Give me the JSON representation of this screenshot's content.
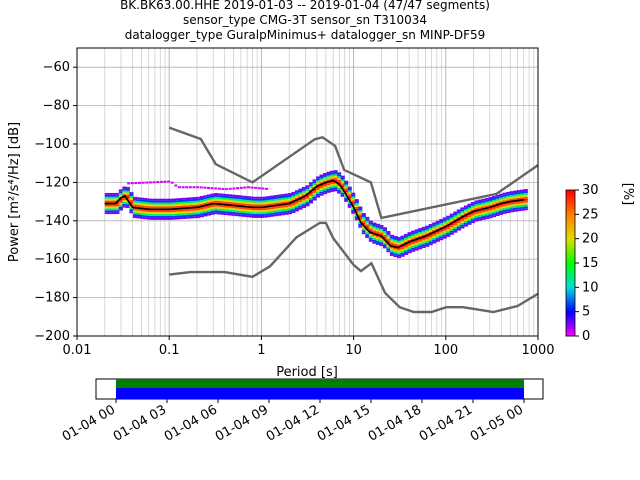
{
  "chart_data": {
    "type": "heatmap",
    "title_lines": [
      "BK.BK63.00.HHE   2019-01-03 -- 2019-01-04  (47/47 segments)",
      "sensor_type CMG-3T sensor_sn T310034",
      "datalogger_type GuralpMinimus+ datalogger_sn MINP-DF59"
    ],
    "xlabel": "Period [s]",
    "ylabel": "Power [m²/s⁴/Hz] [dB]",
    "xscale": "log",
    "xlim": [
      0.01,
      1000
    ],
    "ylim": [
      -200,
      -50
    ],
    "x_ticks": [
      {
        "value": 0.01,
        "label": "0.01"
      },
      {
        "value": 0.1,
        "label": "0.1"
      },
      {
        "value": 1,
        "label": "1"
      },
      {
        "value": 10,
        "label": "10"
      },
      {
        "value": 100,
        "label": "100"
      },
      {
        "value": 1000,
        "label": "1000"
      }
    ],
    "y_ticks": [
      {
        "value": -60,
        "label": "−60"
      },
      {
        "value": -80,
        "label": "−80"
      },
      {
        "value": -100,
        "label": "−100"
      },
      {
        "value": -120,
        "label": "−120"
      },
      {
        "value": -140,
        "label": "−140"
      },
      {
        "value": -160,
        "label": "−160"
      },
      {
        "value": -180,
        "label": "−180"
      },
      {
        "value": -200,
        "label": "−200"
      }
    ],
    "grid": true,
    "noise_model_high": [
      [
        0.1,
        -91.5
      ],
      [
        0.22,
        -97.4
      ],
      [
        0.32,
        -110.5
      ],
      [
        0.8,
        -120
      ],
      [
        3.8,
        -97.5
      ],
      [
        4.6,
        -96.5
      ],
      [
        6.3,
        -101
      ],
      [
        7.9,
        -113.5
      ],
      [
        15.4,
        -120
      ],
      [
        20,
        -138.5
      ],
      [
        354,
        -126
      ],
      [
        1000,
        -111
      ]
    ],
    "noise_model_low": [
      [
        0.1,
        -168
      ],
      [
        0.17,
        -166.7
      ],
      [
        0.4,
        -166.7
      ],
      [
        0.8,
        -169.2
      ],
      [
        1.24,
        -163.7
      ],
      [
        2.4,
        -148.6
      ],
      [
        4.3,
        -141.1
      ],
      [
        5,
        -141.1
      ],
      [
        6,
        -149
      ],
      [
        10,
        -163
      ],
      [
        12,
        -166.2
      ],
      [
        15.6,
        -162.1
      ],
      [
        21.9,
        -177.5
      ],
      [
        31.6,
        -185
      ],
      [
        45,
        -187.5
      ],
      [
        70,
        -187.5
      ],
      [
        101,
        -185
      ],
      [
        154,
        -185
      ],
      [
        328,
        -187.5
      ],
      [
        600,
        -184.4
      ],
      [
        1000,
        -178
      ]
    ],
    "mode_curve": [
      [
        0.02,
        -131
      ],
      [
        0.026,
        -131
      ],
      [
        0.03,
        -128
      ],
      [
        0.033,
        -127
      ],
      [
        0.04,
        -133
      ],
      [
        0.06,
        -134
      ],
      [
        0.1,
        -134
      ],
      [
        0.2,
        -133
      ],
      [
        0.3,
        -131
      ],
      [
        0.5,
        -132
      ],
      [
        0.8,
        -133
      ],
      [
        1,
        -133
      ],
      [
        2,
        -131
      ],
      [
        3,
        -127
      ],
      [
        4,
        -122
      ],
      [
        5,
        -120
      ],
      [
        6,
        -119
      ],
      [
        7,
        -121
      ],
      [
        8,
        -125
      ],
      [
        10,
        -133
      ],
      [
        12,
        -141
      ],
      [
        15,
        -146
      ],
      [
        20,
        -148
      ],
      [
        25,
        -153
      ],
      [
        30,
        -154
      ],
      [
        40,
        -151
      ],
      [
        60,
        -148
      ],
      [
        100,
        -143
      ],
      [
        150,
        -138
      ],
      [
        200,
        -135
      ],
      [
        300,
        -133
      ],
      [
        400,
        -131
      ],
      [
        500,
        -130
      ],
      [
        700,
        -129
      ]
    ],
    "pdf_spread_db": 5,
    "outlier_segment": [
      [
        0.035,
        -120
      ],
      [
        0.1,
        -119
      ],
      [
        0.12,
        -122
      ],
      [
        0.2,
        -122
      ],
      [
        0.4,
        -123
      ],
      [
        0.7,
        -122
      ],
      [
        1.2,
        -123
      ]
    ],
    "colorbar": {
      "label": "[%]",
      "min": 0,
      "max": 30,
      "ticks": [
        0,
        5,
        10,
        15,
        20,
        25,
        30
      ],
      "colors": [
        "#ff00ff",
        "#0000ff",
        "#00dddd",
        "#00ff00",
        "#dddd00",
        "#ff8000",
        "#ff0000"
      ]
    },
    "time_axis": {
      "ticks": [
        "01-04 00",
        "01-04 03",
        "01-04 06",
        "01-04 09",
        "01-04 12",
        "01-04 15",
        "01-04 18",
        "01-04 21",
        "01-05 00"
      ],
      "coverage_colors": [
        "#008000",
        "#0000ff"
      ],
      "coverage": [
        0,
        1
      ]
    },
    "curve_colors": {
      "noise_model": "#666666",
      "mode": "#000000"
    }
  }
}
